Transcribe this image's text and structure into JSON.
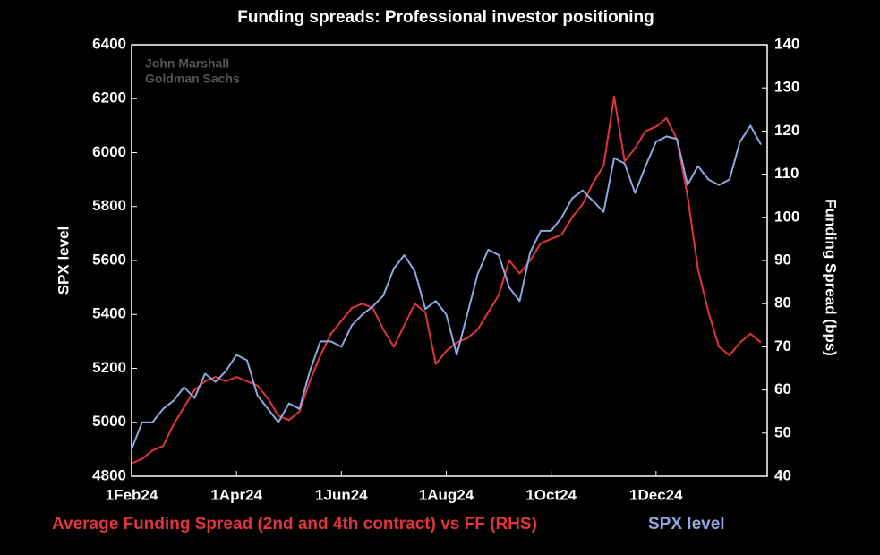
{
  "chart_data": {
    "type": "line",
    "title": "Funding spreads: Professional investor positioning",
    "annotations": [
      "John Marshall",
      "Goldman Sachs"
    ],
    "ylabel": "SPX level",
    "y2label": "Funding Spread (bps)",
    "categories": [
      "1Feb24",
      null,
      null,
      null,
      null,
      null,
      null,
      null,
      null,
      null,
      "1Apr24",
      null,
      null,
      null,
      null,
      null,
      null,
      null,
      null,
      null,
      "1Jun24",
      null,
      null,
      null,
      null,
      null,
      null,
      null,
      null,
      null,
      "1Aug24",
      null,
      null,
      null,
      null,
      null,
      null,
      null,
      null,
      null,
      "1Oct24",
      null,
      null,
      null,
      null,
      null,
      null,
      null,
      null,
      null,
      "1Dec24",
      null,
      null,
      null,
      null,
      null,
      null,
      null,
      null,
      null,
      null
    ],
    "ylim": [
      4800,
      6400
    ],
    "yticks": [
      4800,
      5000,
      5200,
      5400,
      5600,
      5800,
      6000,
      6200,
      6400
    ],
    "y2lim": [
      40,
      140
    ],
    "y2ticks": [
      40,
      50,
      60,
      70,
      80,
      90,
      100,
      110,
      120,
      130,
      140
    ],
    "series": [
      {
        "name": "Average Funding Spread (2nd and 4th contract) vs FF (RHS)",
        "color": "#e0353d",
        "axis": "y2",
        "values": [
          43,
          44,
          46,
          47,
          52,
          56,
          60,
          62,
          63,
          62,
          63,
          62,
          61,
          58,
          54,
          53,
          55,
          62,
          68,
          73,
          76,
          79,
          80,
          79,
          74,
          70,
          75,
          80,
          78,
          66,
          69,
          71,
          72,
          74,
          78,
          82,
          90,
          87,
          90,
          94,
          95,
          96,
          100,
          103,
          108,
          112,
          128,
          113,
          116,
          120,
          121,
          123,
          118,
          105,
          88,
          78,
          70,
          68,
          71,
          73,
          71
        ]
      },
      {
        "name": "SPX level",
        "color": "#8fa8df",
        "axis": "y",
        "values": [
          4900,
          5000,
          5000,
          5050,
          5080,
          5130,
          5090,
          5180,
          5150,
          5190,
          5250,
          5230,
          5100,
          5050,
          5000,
          5070,
          5050,
          5190,
          5300,
          5300,
          5280,
          5360,
          5400,
          5430,
          5470,
          5570,
          5620,
          5560,
          5420,
          5450,
          5400,
          5250,
          5400,
          5550,
          5640,
          5620,
          5500,
          5450,
          5630,
          5710,
          5710,
          5760,
          5830,
          5860,
          5820,
          5780,
          5980,
          5960,
          5850,
          5950,
          6040,
          6060,
          6050,
          5880,
          5950,
          5900,
          5880,
          5900,
          6040,
          6100,
          6030
        ]
      }
    ]
  }
}
